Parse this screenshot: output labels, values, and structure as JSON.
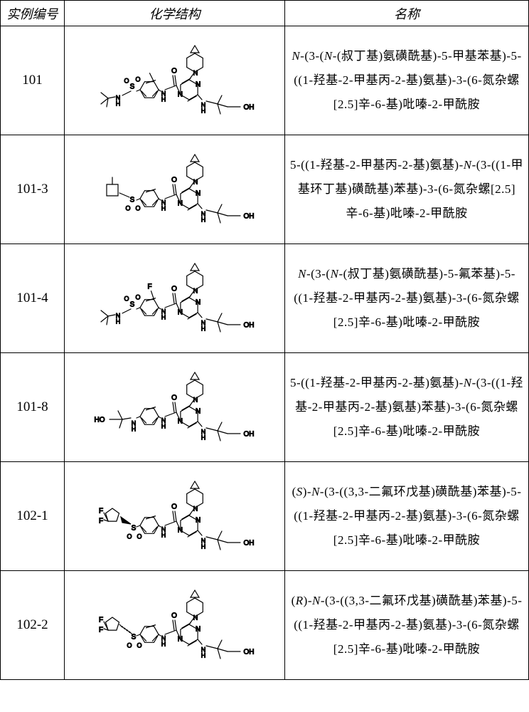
{
  "table": {
    "headers": {
      "id": "实例编号",
      "structure": "化学结构",
      "name": "名称"
    },
    "rows": [
      {
        "id": "101",
        "name_html": "<em>N</em>-(3-(<em>N</em>-(叔丁基)氨磺酰基)-5-甲基苯基)-5-((1-羟基-2-甲基丙-2-基)氨基)-3-(6-氮杂螺[2.5]辛-6-基)吡嗪-2-甲酰胺"
      },
      {
        "id": "101-3",
        "name_html": "5-((1-羟基-2-甲基丙-2-基)氨基)-<em>N</em>-(3-((1-甲基环丁基)磺酰基)苯基)-3-(6-氮杂螺[2.5]辛-6-基)吡嗪-2-甲酰胺"
      },
      {
        "id": "101-4",
        "name_html": "<em>N</em>-(3-(<em>N</em>-(叔丁基)氨磺酰基)-5-氟苯基)-5-((1-羟基-2-甲基丙-2-基)氨基)-3-(6-氮杂螺[2.5]辛-6-基)吡嗪-2-甲酰胺"
      },
      {
        "id": "101-8",
        "name_html": "5-((1-羟基-2-甲基丙-2-基)氨基)-<em>N</em>-(3-((1-羟基-2-甲基丙-2-基)氨基)苯基)-3-(6-氮杂螺[2.5]辛-6-基)吡嗪-2-甲酰胺"
      },
      {
        "id": "102-1",
        "name_html": "(<em>S</em>)-<em>N</em>-(3-((3,3-二氟环戊基)磺酰基)苯基)-5-((1-羟基-2-甲基丙-2-基)氨基)-3-(6-氮杂螺[2.5]辛-6-基)吡嗪-2-甲酰胺"
      },
      {
        "id": "102-2",
        "name_html": "(<em>R</em>)-<em>N</em>-(3-((3,3-二氟环戊基)磺酰基)苯基)-5-((1-羟基-2-甲基丙-2-基)氨基)-3-(6-氮杂螺[2.5]辛-6-基)吡嗪-2-甲酰胺"
      }
    ],
    "chem_style": {
      "stroke": "#000000",
      "stroke_width": 1.2,
      "font_size": 11,
      "background": "#ffffff"
    }
  }
}
